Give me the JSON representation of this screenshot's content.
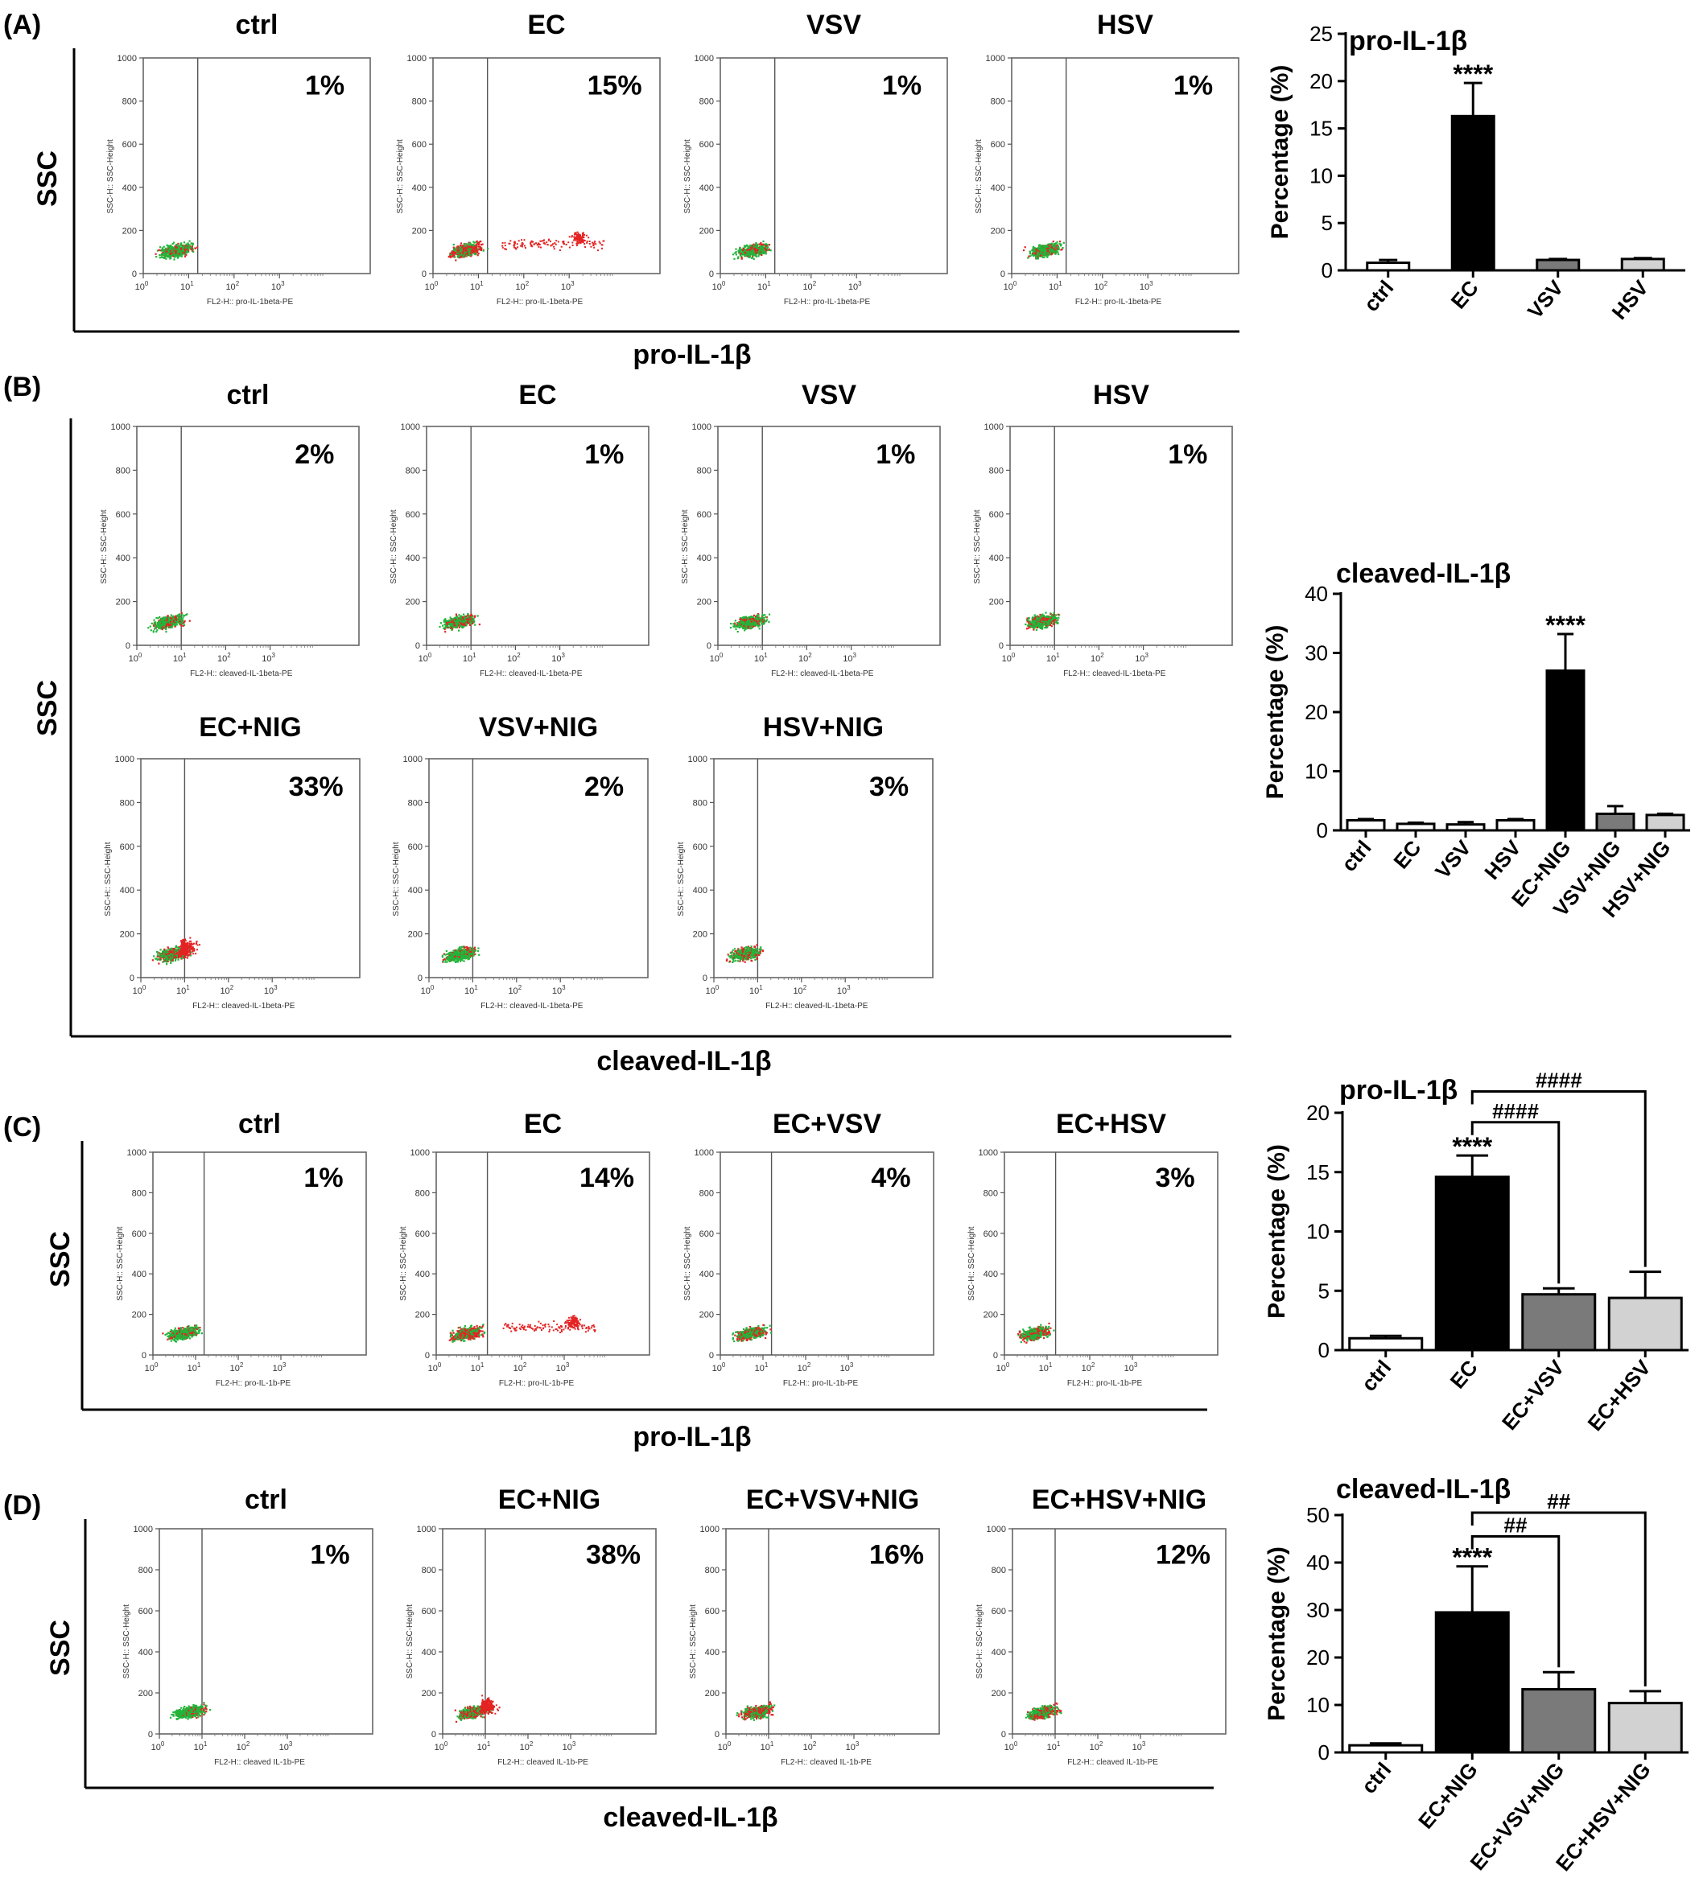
{
  "flow_common": {
    "y_axis_label": "SSC-H:: SSC-Height",
    "y_ticks": [
      "0",
      "200",
      "400",
      "600",
      "800",
      "1000"
    ],
    "x_ticks": [
      "0",
      "1",
      "2",
      "3"
    ],
    "x_tick_base": "10",
    "colors": {
      "green": "#22b53a",
      "red": "#e42323",
      "frame": "#666666",
      "gate": "#555555"
    }
  },
  "panels": [
    {
      "label": "(A)",
      "ssc_label": "SSC",
      "axis_title": "pro-IL-1β",
      "plots": [
        {
          "title": "ctrl",
          "pct": "1%",
          "x_axis": "FL2-H:: pro-IL-1beta-PE",
          "red": 0.25,
          "tail": 0
        },
        {
          "title": "EC",
          "pct": "15%",
          "x_axis": "FL2-H:: pro-IL-1beta-PE",
          "red": 0.55,
          "tail": 1
        },
        {
          "title": "VSV",
          "pct": "1%",
          "x_axis": "FL2-H:: pro-IL-1beta-PE",
          "red": 0.25,
          "tail": 0
        },
        {
          "title": "HSV",
          "pct": "1%",
          "x_axis": "FL2-H:: pro-IL-1beta-PE",
          "red": 0.25,
          "tail": 0
        }
      ]
    },
    {
      "label": "(B)",
      "ssc_label": "SSC",
      "axis_title": "cleaved-IL-1β",
      "plots": [
        {
          "title": "ctrl",
          "pct": "2%",
          "x_axis": "FL2-H:: cleaved-IL-1beta-PE",
          "red": 0.25,
          "tail": 0
        },
        {
          "title": "EC",
          "pct": "1%",
          "x_axis": "FL2-H:: cleaved-IL-1beta-PE",
          "red": 0.4,
          "tail": 0
        },
        {
          "title": "VSV",
          "pct": "1%",
          "x_axis": "FL2-H:: cleaved-IL-1beta-PE",
          "red": 0.25,
          "tail": 0
        },
        {
          "title": "HSV",
          "pct": "1%",
          "x_axis": "FL2-H:: cleaved-IL-1beta-PE",
          "red": 0.3,
          "tail": 0
        },
        {
          "title": "EC+NIG",
          "pct": "33%",
          "x_axis": "FL2-H:: cleaved-IL-1beta-PE",
          "red": 0.45,
          "tail": 2
        },
        {
          "title": "VSV+NIG",
          "pct": "2%",
          "x_axis": "FL2-H:: cleaved-IL-1beta-PE",
          "red": 0.25,
          "tail": 0
        },
        {
          "title": "HSV+NIG",
          "pct": "3%",
          "x_axis": "FL2-H:: cleaved-IL-1beta-PE",
          "red": 0.35,
          "tail": 0
        }
      ]
    },
    {
      "label": "(C)",
      "ssc_label": "SSC",
      "axis_title": "pro-IL-1β",
      "plots": [
        {
          "title": "ctrl",
          "pct": "1%",
          "x_axis": "FL2-H:: pro-IL-1b-PE",
          "red": 0.2,
          "tail": 0
        },
        {
          "title": "EC",
          "pct": "14%",
          "x_axis": "FL2-H:: pro-IL-1b-PE",
          "red": 0.55,
          "tail": 1
        },
        {
          "title": "EC+VSV",
          "pct": "4%",
          "x_axis": "FL2-H:: pro-IL-1b-PE",
          "red": 0.4,
          "tail": 0
        },
        {
          "title": "EC+HSV",
          "pct": "3%",
          "x_axis": "FL2-H:: pro-IL-1b-PE",
          "red": 0.4,
          "tail": 0
        }
      ]
    },
    {
      "label": "(D)",
      "ssc_label": "SSC",
      "axis_title": "cleaved-IL-1β",
      "plots": [
        {
          "title": "ctrl",
          "pct": "1%",
          "x_axis": "FL2-H:: cleaved IL-1b-PE",
          "red": 0.2,
          "tail": 0
        },
        {
          "title": "EC+NIG",
          "pct": "38%",
          "x_axis": "FL2-H:: cleaved IL-1b-PE",
          "red": 0.5,
          "tail": 2
        },
        {
          "title": "EC+VSV+NIG",
          "pct": "16%",
          "x_axis": "FL2-H:: cleaved IL-1b-PE",
          "red": 0.45,
          "tail": 0
        },
        {
          "title": "EC+HSV+NIG",
          "pct": "12%",
          "x_axis": "FL2-H:: cleaved IL-1b-PE",
          "red": 0.45,
          "tail": 0
        }
      ]
    }
  ],
  "chart_data": [
    {
      "type": "bar",
      "panel": "A",
      "title": "pro-IL-1β",
      "ylabel": "Percentage (%)",
      "ylim": [
        0,
        25
      ],
      "yticks": [
        0,
        5,
        10,
        15,
        20,
        25
      ],
      "categories": [
        "ctrl",
        "EC",
        "VSV",
        "HSV"
      ],
      "values": [
        0.8,
        16.3,
        1.1,
        1.2
      ],
      "errors": [
        0.3,
        3.5,
        0.1,
        0.1
      ],
      "colors": [
        "#ffffff",
        "#000000",
        "#7a7a7a",
        "#d2d2d2"
      ],
      "annotations": [
        {
          "text": "****",
          "bar": 1
        }
      ],
      "brackets": []
    },
    {
      "type": "bar",
      "panel": "B",
      "title": "cleaved-IL-1β",
      "ylabel": "Percentage (%)",
      "ylim": [
        0,
        40
      ],
      "yticks": [
        0,
        10,
        20,
        30,
        40
      ],
      "categories": [
        "ctrl",
        "EC",
        "VSV",
        "HSV",
        "EC+NIG",
        "VSV+NIG",
        "HSV+NIG"
      ],
      "values": [
        1.7,
        1.1,
        1.0,
        1.7,
        27.0,
        2.8,
        2.6
      ],
      "errors": [
        0.2,
        0.2,
        0.4,
        0.2,
        6.2,
        1.3,
        0.2
      ],
      "colors": [
        "#ffffff",
        "#ffffff",
        "#ffffff",
        "#ffffff",
        "#000000",
        "#7a7a7a",
        "#d2d2d2"
      ],
      "annotations": [
        {
          "text": "****",
          "bar": 4
        }
      ],
      "brackets": []
    },
    {
      "type": "bar",
      "panel": "C",
      "title": "pro-IL-1β",
      "ylabel": "Percentage (%)",
      "ylim": [
        0,
        20
      ],
      "yticks": [
        0,
        5,
        10,
        15,
        20
      ],
      "categories": [
        "ctrl",
        "EC",
        "EC+VSV",
        "EC+HSV"
      ],
      "values": [
        1.0,
        14.6,
        4.7,
        4.4
      ],
      "errors": [
        0.2,
        1.8,
        0.5,
        2.2
      ],
      "colors": [
        "#ffffff",
        "#000000",
        "#7a7a7a",
        "#d2d2d2"
      ],
      "annotations": [
        {
          "text": "****",
          "bar": 1
        }
      ],
      "brackets": [
        {
          "from": 1,
          "to": 2,
          "text": "####",
          "level": 19.2
        },
        {
          "from": 1,
          "to": 3,
          "text": "####",
          "level": 21.8
        }
      ]
    },
    {
      "type": "bar",
      "panel": "D",
      "title": "cleaved-IL-1β",
      "ylabel": "Percentage (%)",
      "ylim": [
        0,
        50
      ],
      "yticks": [
        0,
        10,
        20,
        30,
        40,
        50
      ],
      "categories": [
        "ctrl",
        "EC+NIG",
        "EC+VSV+NIG",
        "EC+HSV+NIG"
      ],
      "values": [
        1.5,
        29.5,
        13.3,
        10.4
      ],
      "errors": [
        0.4,
        9.7,
        3.6,
        2.5
      ],
      "colors": [
        "#ffffff",
        "#000000",
        "#7a7a7a",
        "#d2d2d2"
      ],
      "annotations": [
        {
          "text": "****",
          "bar": 1
        }
      ],
      "brackets": [
        {
          "from": 1,
          "to": 2,
          "text": "##",
          "level": 45.5
        },
        {
          "from": 1,
          "to": 3,
          "text": "##",
          "level": 50.5
        }
      ]
    }
  ]
}
